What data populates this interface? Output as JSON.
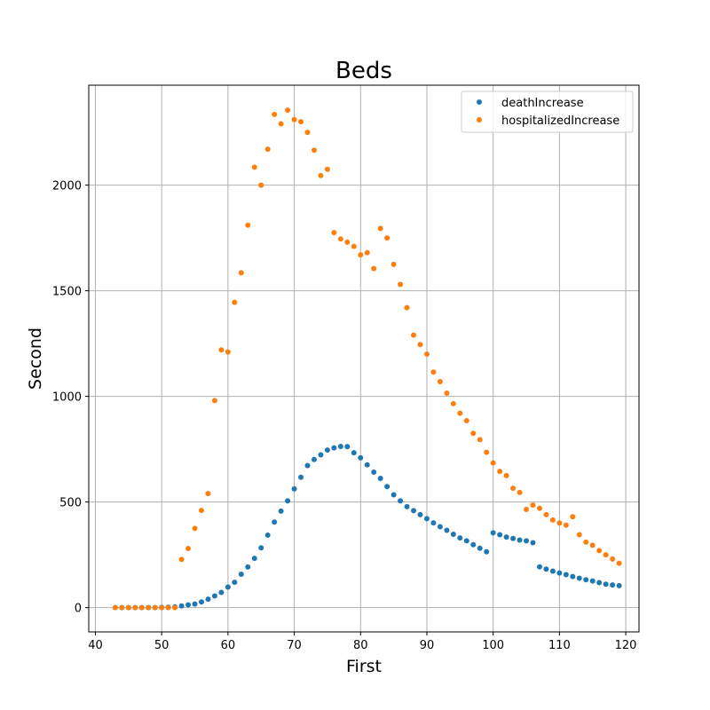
{
  "chart_data": {
    "type": "scatter",
    "title": "Beds",
    "xlabel": "First",
    "ylabel": "Second",
    "xlim": [
      39,
      122
    ],
    "ylim": [
      -115,
      2473
    ],
    "xticks": [
      40,
      50,
      60,
      70,
      80,
      90,
      100,
      110,
      120
    ],
    "yticks": [
      0,
      500,
      1000,
      1500,
      2000
    ],
    "grid": true,
    "legend_position": "top-right",
    "x": [
      43,
      44,
      45,
      46,
      47,
      48,
      49,
      50,
      51,
      52,
      53,
      54,
      55,
      56,
      57,
      58,
      59,
      60,
      61,
      62,
      63,
      64,
      65,
      66,
      67,
      68,
      69,
      70,
      71,
      72,
      73,
      74,
      75,
      76,
      77,
      78,
      79,
      80,
      81,
      82,
      83,
      84,
      85,
      86,
      87,
      88,
      89,
      90,
      91,
      92,
      93,
      94,
      95,
      96,
      97,
      98,
      99,
      100,
      101,
      102,
      103,
      104,
      105,
      106,
      107,
      108,
      109,
      110,
      111,
      112,
      113,
      114,
      115,
      116,
      117,
      118,
      119
    ],
    "series": [
      {
        "name": "deathIncrease",
        "color": "#1f77b4",
        "values": [
          0,
          0,
          0,
          0,
          0,
          0,
          0,
          1,
          2,
          3,
          8,
          13,
          17,
          27,
          40,
          55,
          72,
          97,
          120,
          158,
          192,
          233,
          283,
          343,
          405,
          457,
          505,
          562,
          617,
          672,
          701,
          723,
          746,
          756,
          763,
          762,
          733,
          709,
          676,
          641,
          612,
          573,
          534,
          505,
          478,
          459,
          440,
          421,
          401,
          383,
          366,
          347,
          330,
          316,
          298,
          281,
          264,
          354,
          345,
          334,
          327,
          320,
          316,
          307,
          193,
          182,
          173,
          164,
          156,
          147,
          139,
          132,
          126,
          118,
          111,
          107,
          104
        ]
      },
      {
        "name": "hospitalizedIncrease",
        "color": "#ff7f0e",
        "values": [
          0,
          0,
          0,
          0,
          0,
          0,
          0,
          0,
          0,
          0,
          228,
          280,
          375,
          460,
          540,
          980,
          1220,
          1210,
          1445,
          1585,
          1810,
          2085,
          2000,
          2170,
          2335,
          2290,
          2355,
          2310,
          2300,
          2250,
          2165,
          2045,
          2075,
          1775,
          1745,
          1730,
          1710,
          1670,
          1680,
          1605,
          1795,
          1750,
          1625,
          1530,
          1420,
          1290,
          1245,
          1200,
          1115,
          1070,
          1015,
          965,
          920,
          885,
          825,
          795,
          735,
          685,
          645,
          625,
          565,
          545,
          465,
          485,
          470,
          440,
          415,
          400,
          390,
          430,
          345,
          310,
          295,
          270,
          250,
          230,
          210
        ]
      }
    ]
  }
}
